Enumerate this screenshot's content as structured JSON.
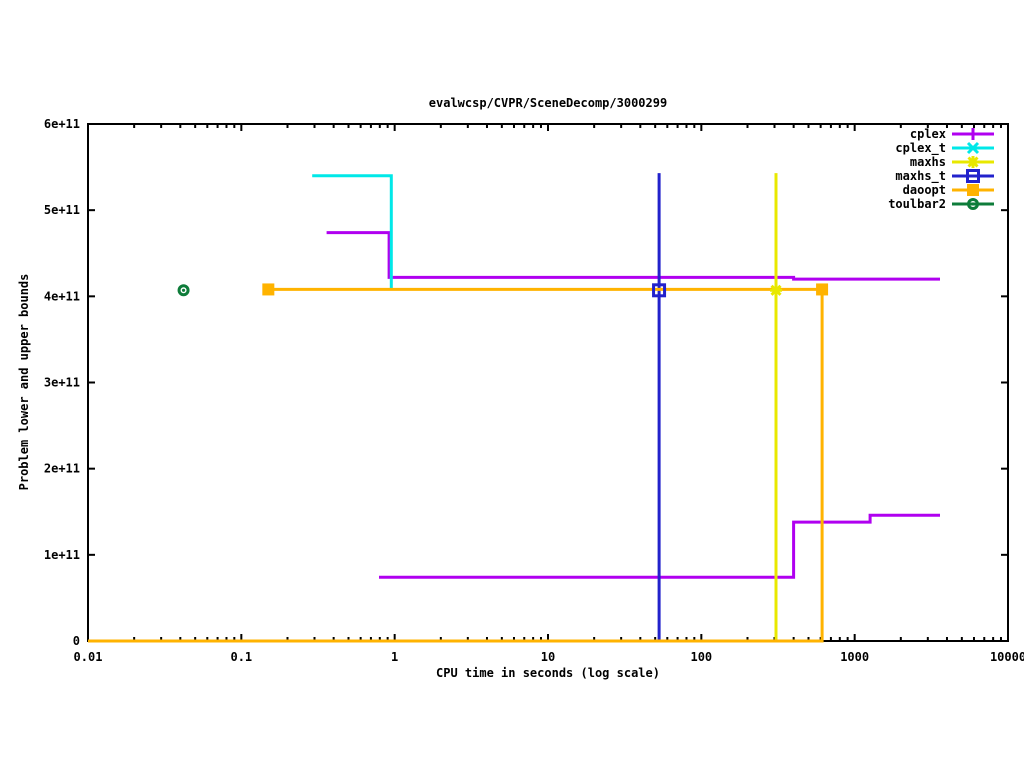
{
  "chart_data": {
    "type": "line",
    "title": "evalwcsp/CVPR/SceneDecomp/3000299",
    "xlabel": "CPU time in seconds (log scale)",
    "ylabel": "Problem lower and upper bounds",
    "x_scale": "log",
    "xlim": [
      0.01,
      10000
    ],
    "ylim": [
      0,
      600000000000.0
    ],
    "grid": false,
    "legend_position": "top-right-inside",
    "xticks": [
      {
        "v": 0.01,
        "label": "0.01"
      },
      {
        "v": 0.1,
        "label": "0.1"
      },
      {
        "v": 1,
        "label": "1"
      },
      {
        "v": 10,
        "label": "10"
      },
      {
        "v": 100,
        "label": "100"
      },
      {
        "v": 1000,
        "label": "1000"
      },
      {
        "v": 10000,
        "label": "10000"
      }
    ],
    "yticks": [
      {
        "v": 0,
        "label": "0"
      },
      {
        "v": 100000000000.0,
        "label": "1e+11"
      },
      {
        "v": 200000000000.0,
        "label": "2e+11"
      },
      {
        "v": 300000000000.0,
        "label": "3e+11"
      },
      {
        "v": 400000000000.0,
        "label": "4e+11"
      },
      {
        "v": 500000000000.0,
        "label": "5e+11"
      },
      {
        "v": 600000000000.0,
        "label": "6e+11"
      }
    ],
    "series": [
      {
        "name": "cplex",
        "color": "#B000F0",
        "marker": "plus",
        "marker_points": [],
        "lines": [
          [
            [
              0.36,
              474000000000.0
            ],
            [
              0.92,
              474000000000.0
            ],
            [
              0.92,
              422000000000.0
            ],
            [
              400,
              422000000000.0
            ],
            [
              400,
              420000000000.0
            ],
            [
              3600,
              420000000000.0
            ]
          ],
          [
            [
              0.79,
              74000000000.0
            ],
            [
              400,
              74000000000.0
            ],
            [
              400,
              138000000000.0
            ],
            [
              1260,
              138000000000.0
            ],
            [
              1260,
              146000000000.0
            ],
            [
              3600,
              146000000000.0
            ]
          ]
        ]
      },
      {
        "name": "cplex_t",
        "color": "#00E8E8",
        "marker": "cross",
        "marker_points": [],
        "lines": [
          [
            [
              0.29,
              540000000000.0
            ],
            [
              0.95,
              540000000000.0
            ],
            [
              0.95,
              407000000000.0
            ]
          ]
        ]
      },
      {
        "name": "maxhs",
        "color": "#E8E800",
        "marker": "star",
        "marker_points": [
          [
            307,
            407000000000.0
          ]
        ],
        "lines": [
          [
            [
              307,
              0
            ],
            [
              307,
              543000000000.0
            ]
          ]
        ]
      },
      {
        "name": "maxhs_t",
        "color": "#2222CC",
        "marker": "open-square",
        "marker_points": [
          [
            53,
            407000000000.0
          ]
        ],
        "lines": [
          [
            [
              53,
              0
            ],
            [
              53,
              543000000000.0
            ]
          ]
        ]
      },
      {
        "name": "daoopt",
        "color": "#FFB300",
        "marker": "filled-square",
        "marker_points": [
          [
            0.15,
            408000000000.0
          ],
          [
            613,
            408000000000.0
          ]
        ],
        "lines": [
          [
            [
              0.15,
              408000000000.0
            ],
            [
              613,
              408000000000.0
            ]
          ],
          [
            [
              0.01,
              0
            ],
            [
              613,
              0
            ],
            [
              613,
              408000000000.0
            ]
          ]
        ]
      },
      {
        "name": "toulbar2",
        "color": "#0E7C3A",
        "marker": "circled-dot",
        "marker_points": [
          [
            0.042,
            407000000000.0
          ]
        ],
        "lines": []
      }
    ]
  }
}
